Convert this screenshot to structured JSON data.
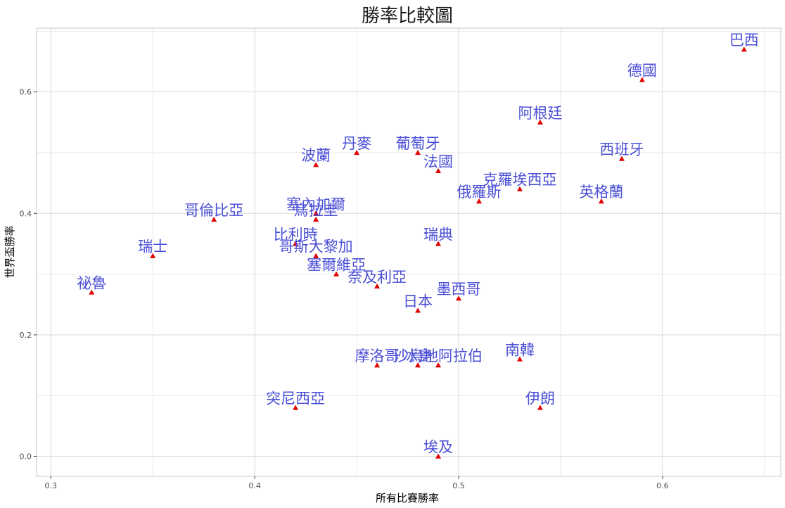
{
  "chart_data": {
    "type": "scatter",
    "title": "勝率比較圖",
    "xlabel": "所有比賽勝率",
    "ylabel": "世界盃勝率",
    "xlim": [
      0.293,
      0.658
    ],
    "ylim": [
      -0.033,
      0.705
    ],
    "xticks": [
      0.3,
      0.4,
      0.5,
      0.6
    ],
    "xtick_labels": [
      "0.3",
      "0.4",
      "0.5",
      "0.6"
    ],
    "yticks": [
      0.0,
      0.2,
      0.4,
      0.6
    ],
    "ytick_labels": [
      "0.0",
      "0.2",
      "0.4",
      "0.6"
    ],
    "grid": true,
    "legend": "none",
    "colors": {
      "point": "#e00000",
      "label": "#4a4fd6",
      "grid": "#dcdcdc",
      "panel_border": "#c8c8c8",
      "background": "#ffffff"
    },
    "points": [
      {
        "label": "巴西",
        "x": 0.64,
        "y": 0.67
      },
      {
        "label": "德國",
        "x": 0.59,
        "y": 0.62
      },
      {
        "label": "阿根廷",
        "x": 0.54,
        "y": 0.55
      },
      {
        "label": "西班牙",
        "x": 0.58,
        "y": 0.49
      },
      {
        "label": "英格蘭",
        "x": 0.57,
        "y": 0.42
      },
      {
        "label": "克羅埃西亞",
        "x": 0.53,
        "y": 0.44
      },
      {
        "label": "俄羅斯",
        "x": 0.51,
        "y": 0.42
      },
      {
        "label": "葡萄牙",
        "x": 0.48,
        "y": 0.5
      },
      {
        "label": "法國",
        "x": 0.49,
        "y": 0.47
      },
      {
        "label": "丹麥",
        "x": 0.45,
        "y": 0.5
      },
      {
        "label": "波蘭",
        "x": 0.43,
        "y": 0.48
      },
      {
        "label": "塞內加爾",
        "x": 0.43,
        "y": 0.4
      },
      {
        "label": "烏拉圭",
        "x": 0.43,
        "y": 0.39
      },
      {
        "label": "哥倫比亞",
        "x": 0.38,
        "y": 0.39
      },
      {
        "label": "瑞士",
        "x": 0.35,
        "y": 0.33
      },
      {
        "label": "祕魯",
        "x": 0.32,
        "y": 0.27
      },
      {
        "label": "比利時",
        "x": 0.42,
        "y": 0.35
      },
      {
        "label": "哥斯大黎加",
        "x": 0.43,
        "y": 0.33
      },
      {
        "label": "塞爾維亞",
        "x": 0.44,
        "y": 0.3
      },
      {
        "label": "奈及利亞",
        "x": 0.46,
        "y": 0.28
      },
      {
        "label": "瑞典",
        "x": 0.49,
        "y": 0.35
      },
      {
        "label": "日本",
        "x": 0.48,
        "y": 0.24
      },
      {
        "label": "墨西哥",
        "x": 0.5,
        "y": 0.26
      },
      {
        "label": "摩洛哥",
        "x": 0.46,
        "y": 0.15
      },
      {
        "label": "冰島",
        "x": 0.48,
        "y": 0.15
      },
      {
        "label": "沙烏地阿拉伯",
        "x": 0.49,
        "y": 0.15
      },
      {
        "label": "南韓",
        "x": 0.53,
        "y": 0.16
      },
      {
        "label": "突尼西亞",
        "x": 0.42,
        "y": 0.08
      },
      {
        "label": "伊朗",
        "x": 0.54,
        "y": 0.08
      },
      {
        "label": "埃及",
        "x": 0.49,
        "y": 0.0
      }
    ]
  }
}
